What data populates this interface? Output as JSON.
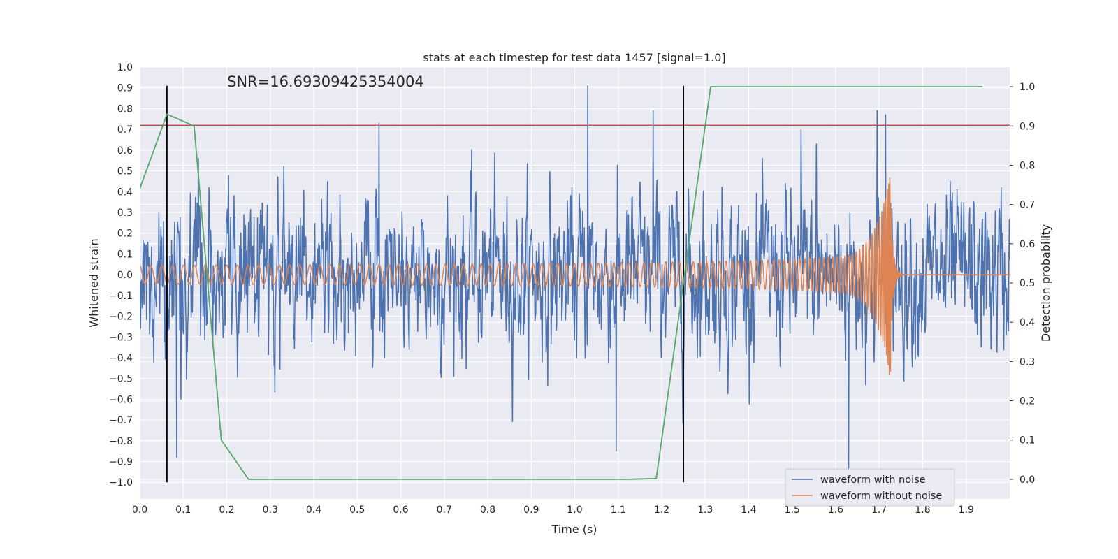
{
  "chart_data": {
    "type": "line",
    "title": "stats at each timestep for test data 1457 [signal=1.0]",
    "annotation": "SNR=16.69309425354004",
    "xlabel": "Time (s)",
    "ylabel": "Whitened strain",
    "y2label": "Detection probability",
    "xlim": [
      0.0,
      2.0
    ],
    "ylim": [
      -1.08,
      1.0
    ],
    "y2lim": [
      -0.05,
      1.05
    ],
    "xticks": [
      0.0,
      0.1,
      0.2,
      0.3,
      0.4,
      0.5,
      0.6,
      0.7,
      0.8,
      0.9,
      1.0,
      1.1,
      1.2,
      1.3,
      1.4,
      1.5,
      1.6,
      1.7,
      1.8,
      1.9
    ],
    "xtick_labels": [
      "0.0",
      "0.1",
      "0.2",
      "0.3",
      "0.4",
      "0.5",
      "0.6",
      "0.7",
      "0.8",
      "0.9",
      "1.0",
      "1.1",
      "1.2",
      "1.3",
      "1.4",
      "1.5",
      "1.6",
      "1.7",
      "1.8",
      "1.9"
    ],
    "yticks": [
      1.0,
      0.9,
      0.8,
      0.7,
      0.6,
      0.5,
      0.4,
      0.3,
      0.2,
      0.1,
      0.0,
      -0.1,
      -0.2,
      -0.3,
      -0.4,
      -0.5,
      -0.6,
      -0.7,
      -0.8,
      -0.9,
      -1.0
    ],
    "ytick_labels": [
      "1.0",
      "0.9",
      "0.8",
      "0.7",
      "0.6",
      "0.5",
      "0.4",
      "0.3",
      "0.2",
      "0.1",
      "0.0",
      "−0.1",
      "−0.2",
      "−0.3",
      "−0.4",
      "−0.5",
      "−0.6",
      "−0.7",
      "−0.8",
      "−0.9",
      "−1.0"
    ],
    "y2ticks": [
      1.0,
      0.9,
      0.8,
      0.7,
      0.6,
      0.5,
      0.4,
      0.3,
      0.2,
      0.1,
      0.0
    ],
    "y2tick_labels": [
      "1.0",
      "0.9",
      "0.8",
      "0.7",
      "0.6",
      "0.5",
      "0.4",
      "0.3",
      "0.2",
      "0.1",
      "0.0"
    ],
    "grid": true,
    "legend_position": "bottom-right",
    "threshold": {
      "y": 0.72,
      "color": "#c44e52"
    },
    "vlines": [
      {
        "x": 0.0625,
        "ymin": -1.0,
        "ymax": 0.91,
        "color": "#000000"
      },
      {
        "x": 1.25,
        "ymin": -1.0,
        "ymax": 0.91,
        "color": "#000000"
      }
    ],
    "series": [
      {
        "name": "waveform with noise",
        "color": "#4c72b0",
        "axis": "left",
        "style": "noise",
        "x_start": 0.0,
        "x_end": 2.0,
        "num_points": 2048,
        "spikes": [
          {
            "x": 0.085,
            "y": -0.88
          },
          {
            "x": 0.095,
            "y": -0.6
          },
          {
            "x": 0.135,
            "y": 0.56
          },
          {
            "x": 0.55,
            "y": 0.73
          },
          {
            "x": 1.03,
            "y": 0.91
          },
          {
            "x": 1.095,
            "y": -0.85
          },
          {
            "x": 1.18,
            "y": 0.79
          },
          {
            "x": 1.63,
            "y": -0.96
          },
          {
            "x": 1.695,
            "y": 0.79
          },
          {
            "x": 1.715,
            "y": 0.77
          },
          {
            "x": 1.555,
            "y": 0.63
          },
          {
            "x": 1.52,
            "y": 0.7
          }
        ]
      },
      {
        "name": "waveform without noise",
        "color": "#dd8452",
        "axis": "left",
        "style": "chirp",
        "x_start": 0.0,
        "x_end": 2.0,
        "merger_time": 1.727,
        "start_amplitude": 0.045,
        "peak_amplitude": 0.53,
        "start_frequency_hz": 39
      },
      {
        "name": "",
        "color": "#55a868",
        "axis": "right",
        "style": "line",
        "x": [
          0.0,
          0.0625,
          0.125,
          0.1875,
          0.25,
          0.3125,
          0.375,
          0.4375,
          0.5,
          0.5625,
          0.625,
          0.6875,
          0.75,
          0.8125,
          0.875,
          0.9375,
          1.0,
          1.0625,
          1.125,
          1.1875,
          1.25,
          1.3125,
          1.375,
          1.4375,
          1.5,
          1.5625,
          1.625,
          1.6875,
          1.75,
          1.8125,
          1.875,
          1.9375
        ],
        "values": [
          0.74,
          0.93,
          0.9,
          0.1,
          0.0,
          0.0,
          0.0,
          0.0,
          0.0,
          0.0,
          0.0,
          0.0,
          0.0,
          0.0,
          0.0,
          0.0,
          0.0,
          0.0,
          0.0,
          0.002,
          0.5,
          1.0,
          1.0,
          1.0,
          1.0,
          1.0,
          1.0,
          1.0,
          1.0,
          1.0,
          1.0,
          1.0
        ]
      }
    ]
  }
}
